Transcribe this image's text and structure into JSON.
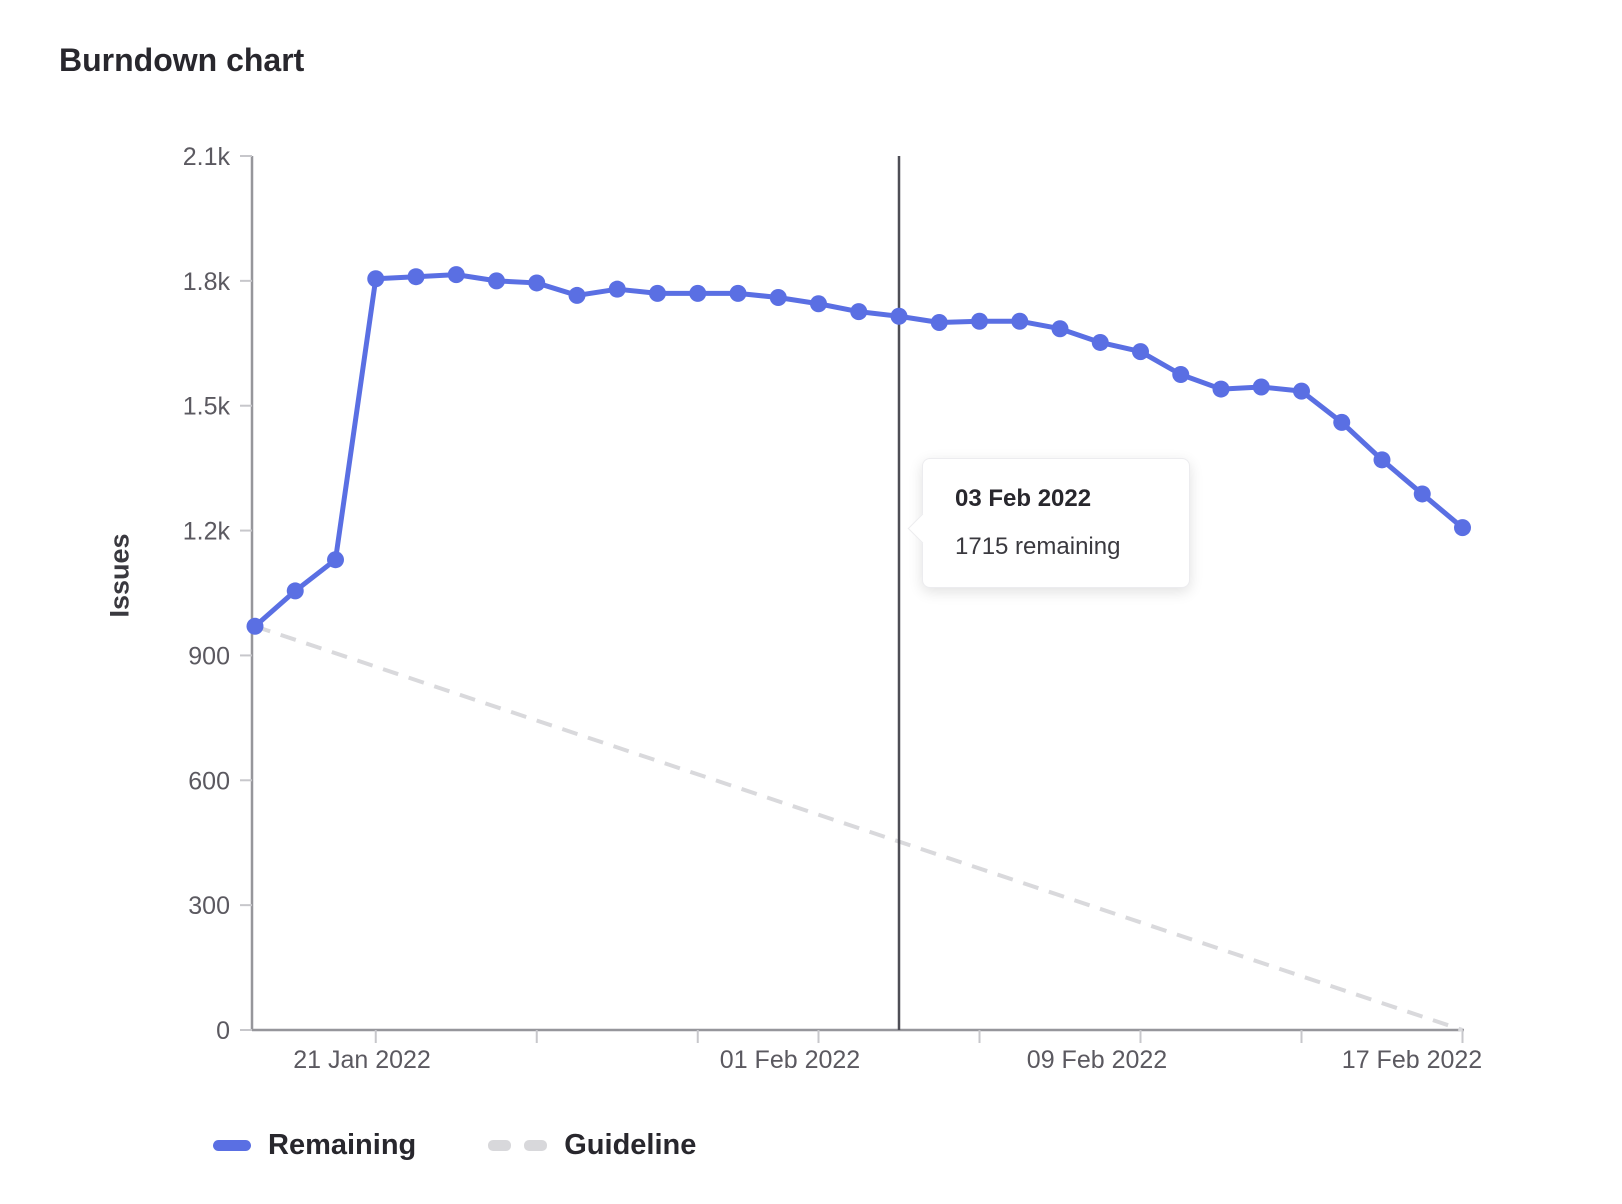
{
  "page": {
    "title": "Burndown chart"
  },
  "chart_data": {
    "type": "line",
    "title": "Burndown chart",
    "xlabel": "",
    "ylabel": "Issues",
    "ylim": [
      0,
      2100
    ],
    "grid": false,
    "legend_position": "bottom-left",
    "y_ticks": [
      {
        "value": 0,
        "label": "0"
      },
      {
        "value": 300,
        "label": "300"
      },
      {
        "value": 600,
        "label": "600"
      },
      {
        "value": 900,
        "label": "900"
      },
      {
        "value": 1200,
        "label": "1.2k"
      },
      {
        "value": 1500,
        "label": "1.5k"
      },
      {
        "value": 1800,
        "label": "1.8k"
      },
      {
        "value": 2100,
        "label": "2.1k"
      }
    ],
    "x": [
      "18 Jan 2022",
      "19 Jan 2022",
      "20 Jan 2022",
      "21 Jan 2022",
      "22 Jan 2022",
      "23 Jan 2022",
      "24 Jan 2022",
      "25 Jan 2022",
      "26 Jan 2022",
      "27 Jan 2022",
      "28 Jan 2022",
      "29 Jan 2022",
      "30 Jan 2022",
      "31 Jan 2022",
      "01 Feb 2022",
      "02 Feb 2022",
      "03 Feb 2022",
      "04 Feb 2022",
      "05 Feb 2022",
      "06 Feb 2022",
      "07 Feb 2022",
      "08 Feb 2022",
      "09 Feb 2022",
      "10 Feb 2022",
      "11 Feb 2022",
      "12 Feb 2022",
      "13 Feb 2022",
      "14 Feb 2022",
      "15 Feb 2022",
      "16 Feb 2022",
      "17 Feb 2022"
    ],
    "x_tick_days": [
      3,
      7,
      11,
      14,
      18,
      22,
      26,
      30
    ],
    "x_axis_labels": [
      {
        "day": 3,
        "text": "21 Jan 2022"
      },
      {
        "day": 14,
        "text": "01 Feb 2022"
      },
      {
        "day": 22,
        "text": "09 Feb 2022"
      },
      {
        "day": 30,
        "text": "17 Feb 2022"
      }
    ],
    "series": [
      {
        "name": "Remaining",
        "style": "solid",
        "color": "#5a6fe3",
        "values": [
          970,
          1055,
          1130,
          1805,
          1810,
          1815,
          1800,
          1795,
          1765,
          1780,
          1770,
          1770,
          1770,
          1760,
          1745,
          1726,
          1715,
          1700,
          1703,
          1703,
          1685,
          1652,
          1630,
          1575,
          1540,
          1545,
          1535,
          1460,
          1370,
          1288,
          1207
        ]
      },
      {
        "name": "Guideline",
        "style": "dashed",
        "color": "#d9d9dc",
        "points": [
          {
            "day": 0,
            "value": 970
          },
          {
            "day": 30,
            "value": 0
          }
        ]
      }
    ],
    "today_marker": {
      "day": 16,
      "date": "03 Feb 2022",
      "color": "#4e4e56"
    },
    "tooltip": {
      "title": "03 Feb 2022",
      "body": "1715 remaining"
    },
    "legend": [
      {
        "label": "Remaining",
        "swatch": "solid-line",
        "color": "#5a6fe3"
      },
      {
        "label": "Guideline",
        "swatch": "dashed-line",
        "color": "#d8d8db"
      }
    ],
    "axis_color": "#96969b",
    "tick_mark_color": "#c7c7cb",
    "tick_text_color": "#5b5960"
  }
}
